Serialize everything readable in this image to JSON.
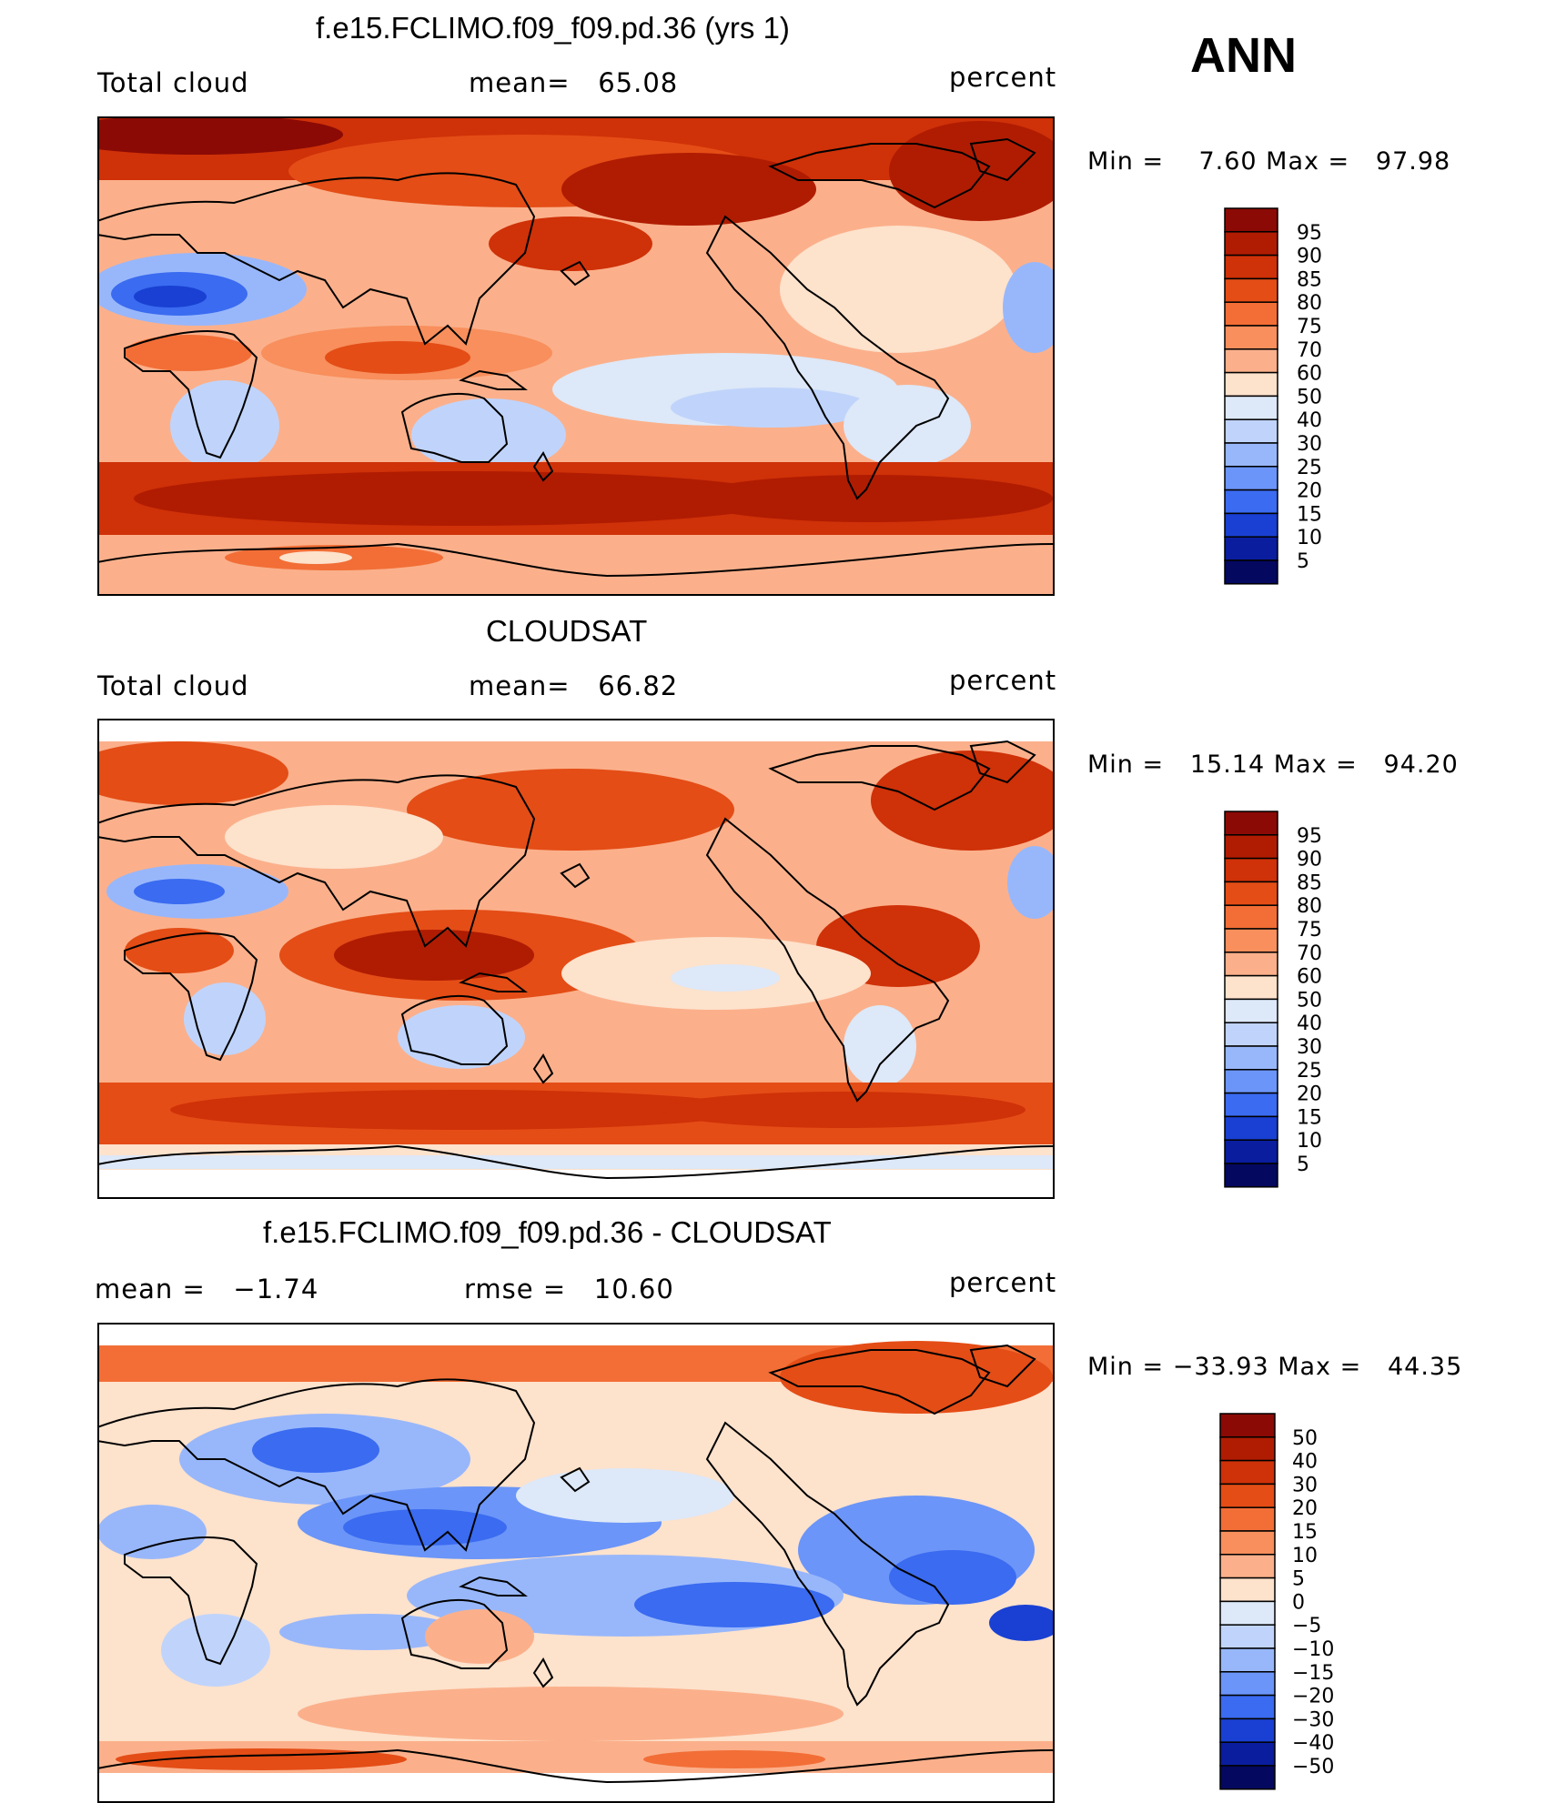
{
  "season": "ANN",
  "units": "percent",
  "panels": [
    {
      "title": "f.e15.FCLIMO.f09_f09.pd.36 (yrs 1)",
      "left_label": "Total cloud",
      "stat1": "mean=   65.08",
      "right_label": "percent",
      "minmax": "Min =    7.60 Max =   97.98",
      "levels": [
        "95",
        "90",
        "85",
        "80",
        "75",
        "70",
        "60",
        "50",
        "40",
        "30",
        "25",
        "20",
        "15",
        "10",
        "5"
      ],
      "colors": [
        "#8b0a05",
        "#b01c02",
        "#cf3108",
        "#e44d16",
        "#f26e36",
        "#f88f5c",
        "#fbb08b",
        "#fde2cc",
        "#dde8f8",
        "#c0d4fb",
        "#98b7fb",
        "#6b95f8",
        "#3a6bf0",
        "#1940d2",
        "#0a1d9e",
        "#04085e"
      ]
    },
    {
      "title": "CLOUDSAT",
      "left_label": "Total cloud",
      "stat1": "mean=   66.82",
      "right_label": "percent",
      "minmax": "Min =   15.14 Max =   94.20",
      "levels": [
        "95",
        "90",
        "85",
        "80",
        "75",
        "70",
        "60",
        "50",
        "40",
        "30",
        "25",
        "20",
        "15",
        "10",
        "5"
      ],
      "colors": [
        "#8b0a05",
        "#b01c02",
        "#cf3108",
        "#e44d16",
        "#f26e36",
        "#f88f5c",
        "#fbb08b",
        "#fde2cc",
        "#dde8f8",
        "#c0d4fb",
        "#98b7fb",
        "#6b95f8",
        "#3a6bf0",
        "#1940d2",
        "#0a1d9e",
        "#04085e"
      ]
    },
    {
      "title": "f.e15.FCLIMO.f09_f09.pd.36 - CLOUDSAT",
      "left_label": "mean =   −1.74",
      "stat1": "rmse =   10.60",
      "right_label": "percent",
      "minmax": "Min = −33.93 Max =   44.35",
      "levels": [
        "50",
        "40",
        "30",
        "20",
        "15",
        "10",
        "5",
        "0",
        "−5",
        "−10",
        "−15",
        "−20",
        "−30",
        "−40",
        "−50"
      ],
      "colors": [
        "#8b0a05",
        "#b01c02",
        "#cf3108",
        "#e44d16",
        "#f26e36",
        "#f88f5c",
        "#fbb08b",
        "#fde2cc",
        "#dde8f8",
        "#c0d4fb",
        "#98b7fb",
        "#6b95f8",
        "#3a6bf0",
        "#1940d2",
        "#0a1d9e",
        "#04085e"
      ]
    }
  ]
}
